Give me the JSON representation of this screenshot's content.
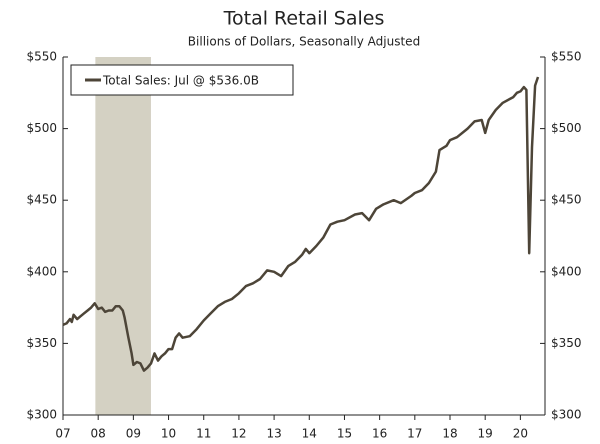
{
  "chart_data": {
    "type": "line",
    "title": "Total Retail Sales",
    "subtitle": "Billions of Dollars, Seasonally Adjusted",
    "legend_label": "Total Sales: Jul @ $536.0B",
    "legend_position": "upper left",
    "recession": [
      2007.92,
      2009.5
    ],
    "recession_color": "#d4d1c3",
    "x": [
      2007.0,
      2007.1,
      2007.2,
      2007.25,
      2007.3,
      2007.4,
      2007.5,
      2007.6,
      2007.7,
      2007.8,
      2007.9,
      2008.0,
      2008.1,
      2008.2,
      2008.3,
      2008.4,
      2008.5,
      2008.6,
      2008.7,
      2008.75,
      2008.85,
      2008.95,
      2009.0,
      2009.1,
      2009.2,
      2009.3,
      2009.4,
      2009.5,
      2009.6,
      2009.7,
      2009.8,
      2009.9,
      2010.0,
      2010.1,
      2010.2,
      2010.3,
      2010.4,
      2010.6,
      2010.8,
      2011.0,
      2011.2,
      2011.4,
      2011.6,
      2011.8,
      2012.0,
      2012.2,
      2012.4,
      2012.6,
      2012.8,
      2013.0,
      2013.2,
      2013.4,
      2013.6,
      2013.8,
      2013.9,
      2014.0,
      2014.2,
      2014.4,
      2014.6,
      2014.8,
      2015.0,
      2015.3,
      2015.5,
      2015.7,
      2015.9,
      2016.1,
      2016.4,
      2016.6,
      2016.9,
      2017.0,
      2017.2,
      2017.4,
      2017.6,
      2017.7,
      2017.9,
      2018.0,
      2018.2,
      2018.5,
      2018.7,
      2018.9,
      2019.0,
      2019.1,
      2019.3,
      2019.5,
      2019.8,
      2019.9,
      2020.0,
      2020.1,
      2020.17,
      2020.25,
      2020.33,
      2020.42,
      2020.5
    ],
    "series": [
      {
        "name": "Total Sales",
        "color": "#4d4538",
        "values": [
          363,
          364,
          367,
          365,
          370,
          367,
          369,
          371,
          373,
          375,
          378,
          374,
          375,
          372,
          373,
          373,
          376,
          376,
          373,
          368,
          355,
          343,
          335,
          337,
          336,
          331,
          333,
          336,
          343,
          338,
          341,
          343,
          346,
          346,
          354,
          357,
          354,
          355,
          360,
          366,
          371,
          376,
          379,
          381,
          385,
          390,
          392,
          395,
          401,
          400,
          397,
          404,
          407,
          412,
          416,
          413,
          418,
          424,
          433,
          435,
          436,
          440,
          441,
          436,
          444,
          447,
          450,
          448,
          453,
          455,
          457,
          462,
          470,
          485,
          488,
          492,
          494,
          500,
          505,
          506,
          497,
          506,
          513,
          518,
          522,
          525,
          526,
          529,
          527,
          413,
          487,
          530,
          536
        ]
      }
    ],
    "xlim": [
      2007,
      2020.7
    ],
    "xticks": [
      {
        "value": 2007,
        "label": "07"
      },
      {
        "value": 2008,
        "label": "08"
      },
      {
        "value": 2009,
        "label": "09"
      },
      {
        "value": 2010,
        "label": "10"
      },
      {
        "value": 2011,
        "label": "11"
      },
      {
        "value": 2012,
        "label": "12"
      },
      {
        "value": 2013,
        "label": "13"
      },
      {
        "value": 2014,
        "label": "14"
      },
      {
        "value": 2015,
        "label": "15"
      },
      {
        "value": 2016,
        "label": "16"
      },
      {
        "value": 2017,
        "label": "17"
      },
      {
        "value": 2018,
        "label": "18"
      },
      {
        "value": 2019,
        "label": "19"
      },
      {
        "value": 2020,
        "label": "20"
      }
    ],
    "ylim": [
      300,
      550
    ],
    "yticks": [
      {
        "value": 300,
        "label": "$300"
      },
      {
        "value": 350,
        "label": "$350"
      },
      {
        "value": 400,
        "label": "$400"
      },
      {
        "value": 450,
        "label": "$450"
      },
      {
        "value": 500,
        "label": "$500"
      },
      {
        "value": 550,
        "label": "$550"
      }
    ],
    "y2lim": [
      300,
      550
    ],
    "y2ticks": [
      {
        "value": 300,
        "label": "$300"
      },
      {
        "value": 350,
        "label": "$350"
      },
      {
        "value": 400,
        "label": "$400"
      },
      {
        "value": 450,
        "label": "$450"
      },
      {
        "value": 500,
        "label": "$500"
      },
      {
        "value": 550,
        "label": "$550"
      }
    ]
  }
}
